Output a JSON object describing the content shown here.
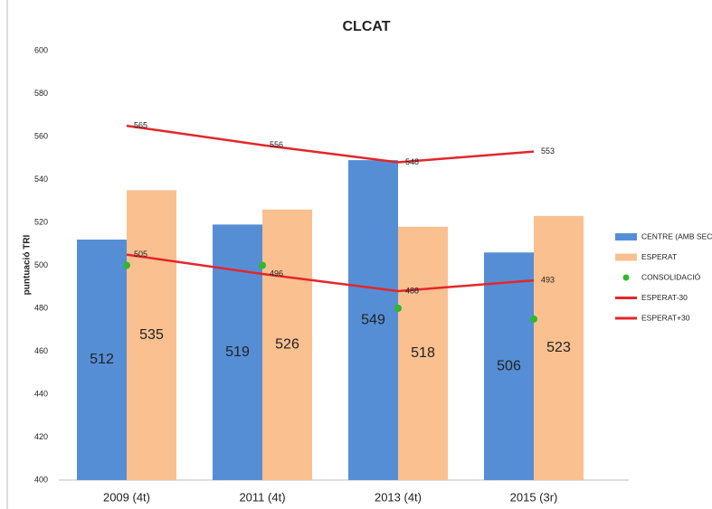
{
  "chart_data": {
    "type": "bar",
    "title": "CLCAT",
    "y_label": "puntuació TRI",
    "categories": [
      "2009 (4t)",
      "2011 (4t)",
      "2013 (4t)",
      "2015 (3r)"
    ],
    "series": [
      {
        "name": "CENTRE (AMB SEC)",
        "type": "bar",
        "color": "#558ed5",
        "values": [
          512,
          519,
          549,
          506
        ]
      },
      {
        "name": "ESPERAT",
        "type": "bar",
        "color": "#fac090",
        "values": [
          535,
          526,
          518,
          523
        ]
      },
      {
        "name": "CONSOLIDACIÓ",
        "type": "scatter",
        "color": "#2eb82e",
        "values": [
          500,
          500,
          480,
          475
        ]
      },
      {
        "name": "ESPERAT-30",
        "type": "line",
        "color": "#e3262b",
        "values": [
          505,
          496,
          488,
          493
        ]
      },
      {
        "name": "ESPERAT+30",
        "type": "line",
        "color": "#e3262b",
        "values": [
          565,
          556,
          548,
          553
        ]
      }
    ],
    "ylim": [
      400,
      600
    ],
    "yticks": [
      400,
      420,
      440,
      460,
      480,
      500,
      520,
      540,
      560,
      580,
      600
    ],
    "grid": false,
    "legend": "right"
  }
}
